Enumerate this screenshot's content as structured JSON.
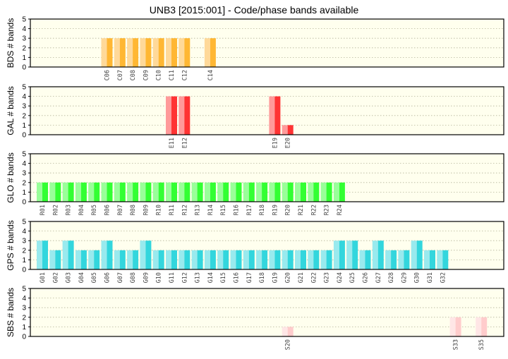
{
  "title": "UNB3 [2015:001] - Code/phase bands available",
  "colors": {
    "panel_bg": "#ffffee",
    "grid": "#b5b59a",
    "frame": "#000000"
  },
  "chart_data": [
    {
      "type": "bar",
      "ylabel": "BDS # bands",
      "ylim": [
        0,
        5
      ],
      "color": "#ffb733",
      "light_color": "#ffd999",
      "categories": [
        "C06",
        "C07",
        "C08",
        "C09",
        "C10",
        "C11",
        "C12",
        "C14"
      ],
      "slots": [
        6,
        7,
        8,
        9,
        10,
        11,
        12,
        14
      ],
      "values": [
        3,
        3,
        3,
        3,
        3,
        3,
        3,
        3
      ]
    },
    {
      "type": "bar",
      "ylabel": "GAL # bands",
      "ylim": [
        0,
        5
      ],
      "color": "#ff3333",
      "light_color": "#ff9a9a",
      "categories": [
        "E11",
        "E12",
        "E19",
        "E20"
      ],
      "slots": [
        11,
        12,
        19,
        20
      ],
      "values": [
        4,
        4,
        4,
        1
      ]
    },
    {
      "type": "bar",
      "ylabel": "GLO # bands",
      "ylim": [
        0,
        5
      ],
      "color": "#33ff33",
      "light_color": "#99ff99",
      "categories": [
        "R01",
        "R02",
        "R03",
        "R04",
        "R05",
        "R06",
        "R07",
        "R08",
        "R09",
        "R10",
        "R11",
        "R12",
        "R13",
        "R14",
        "R15",
        "R16",
        "R17",
        "R18",
        "R19",
        "R20",
        "R21",
        "R22",
        "R23",
        "R24"
      ],
      "slots": [
        1,
        2,
        3,
        4,
        5,
        6,
        7,
        8,
        9,
        10,
        11,
        12,
        13,
        14,
        15,
        16,
        17,
        18,
        19,
        20,
        21,
        22,
        23,
        24
      ],
      "values": [
        2,
        2,
        2,
        2,
        2,
        2,
        2,
        2,
        2,
        2,
        2,
        2,
        2,
        2,
        2,
        2,
        2,
        2,
        2,
        2,
        2,
        2,
        2,
        2
      ]
    },
    {
      "type": "bar",
      "ylabel": "GPS # bands",
      "ylim": [
        0,
        5
      ],
      "color": "#33d6dd",
      "light_color": "#99eaee",
      "categories": [
        "G01",
        "G02",
        "G03",
        "G04",
        "G05",
        "G06",
        "G07",
        "G08",
        "G09",
        "G10",
        "G11",
        "G12",
        "G13",
        "G14",
        "G15",
        "G16",
        "G17",
        "G18",
        "G19",
        "G20",
        "G21",
        "G22",
        "G23",
        "G24",
        "G25",
        "G26",
        "G27",
        "G28",
        "G29",
        "G30",
        "G31",
        "G32"
      ],
      "slots": [
        1,
        2,
        3,
        4,
        5,
        6,
        7,
        8,
        9,
        10,
        11,
        12,
        13,
        14,
        15,
        16,
        17,
        18,
        19,
        20,
        21,
        22,
        23,
        24,
        25,
        26,
        27,
        28,
        29,
        30,
        31,
        32
      ],
      "values": [
        3,
        2,
        3,
        2,
        2,
        3,
        2,
        2,
        3,
        2,
        2,
        2,
        2,
        2,
        2,
        2,
        2,
        2,
        2,
        2,
        2,
        2,
        2,
        3,
        3,
        2,
        3,
        2,
        2,
        3,
        2,
        2
      ]
    },
    {
      "type": "bar",
      "ylabel": "SBS # bands",
      "ylim": [
        0,
        5
      ],
      "color": "#ffcccc",
      "light_color": "#ffe6e6",
      "categories": [
        "S20",
        "S33",
        "S35"
      ],
      "slots": [
        20,
        33,
        35
      ],
      "values": [
        1,
        2,
        2
      ]
    }
  ]
}
